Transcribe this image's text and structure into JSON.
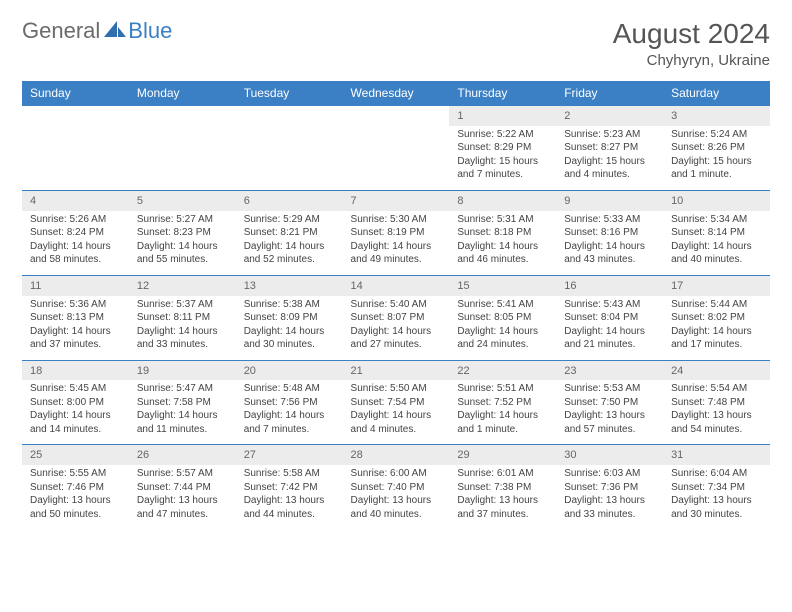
{
  "header": {
    "logo_text_1": "General",
    "logo_text_2": "Blue",
    "month_title": "August 2024",
    "location": "Chyhyryn, Ukraine"
  },
  "colors": {
    "header_bg": "#3b7fc4",
    "header_text": "#ffffff",
    "daynum_bg": "#ececec",
    "border": "#3b7fc4",
    "body_text": "#444444",
    "logo_gray": "#6b6b6b",
    "logo_blue": "#3b7fc4"
  },
  "day_names": [
    "Sunday",
    "Monday",
    "Tuesday",
    "Wednesday",
    "Thursday",
    "Friday",
    "Saturday"
  ],
  "weeks": [
    [
      null,
      null,
      null,
      null,
      {
        "n": "1",
        "sr": "Sunrise: 5:22 AM",
        "ss": "Sunset: 8:29 PM",
        "dl": "Daylight: 15 hours and 7 minutes."
      },
      {
        "n": "2",
        "sr": "Sunrise: 5:23 AM",
        "ss": "Sunset: 8:27 PM",
        "dl": "Daylight: 15 hours and 4 minutes."
      },
      {
        "n": "3",
        "sr": "Sunrise: 5:24 AM",
        "ss": "Sunset: 8:26 PM",
        "dl": "Daylight: 15 hours and 1 minute."
      }
    ],
    [
      {
        "n": "4",
        "sr": "Sunrise: 5:26 AM",
        "ss": "Sunset: 8:24 PM",
        "dl": "Daylight: 14 hours and 58 minutes."
      },
      {
        "n": "5",
        "sr": "Sunrise: 5:27 AM",
        "ss": "Sunset: 8:23 PM",
        "dl": "Daylight: 14 hours and 55 minutes."
      },
      {
        "n": "6",
        "sr": "Sunrise: 5:29 AM",
        "ss": "Sunset: 8:21 PM",
        "dl": "Daylight: 14 hours and 52 minutes."
      },
      {
        "n": "7",
        "sr": "Sunrise: 5:30 AM",
        "ss": "Sunset: 8:19 PM",
        "dl": "Daylight: 14 hours and 49 minutes."
      },
      {
        "n": "8",
        "sr": "Sunrise: 5:31 AM",
        "ss": "Sunset: 8:18 PM",
        "dl": "Daylight: 14 hours and 46 minutes."
      },
      {
        "n": "9",
        "sr": "Sunrise: 5:33 AM",
        "ss": "Sunset: 8:16 PM",
        "dl": "Daylight: 14 hours and 43 minutes."
      },
      {
        "n": "10",
        "sr": "Sunrise: 5:34 AM",
        "ss": "Sunset: 8:14 PM",
        "dl": "Daylight: 14 hours and 40 minutes."
      }
    ],
    [
      {
        "n": "11",
        "sr": "Sunrise: 5:36 AM",
        "ss": "Sunset: 8:13 PM",
        "dl": "Daylight: 14 hours and 37 minutes."
      },
      {
        "n": "12",
        "sr": "Sunrise: 5:37 AM",
        "ss": "Sunset: 8:11 PM",
        "dl": "Daylight: 14 hours and 33 minutes."
      },
      {
        "n": "13",
        "sr": "Sunrise: 5:38 AM",
        "ss": "Sunset: 8:09 PM",
        "dl": "Daylight: 14 hours and 30 minutes."
      },
      {
        "n": "14",
        "sr": "Sunrise: 5:40 AM",
        "ss": "Sunset: 8:07 PM",
        "dl": "Daylight: 14 hours and 27 minutes."
      },
      {
        "n": "15",
        "sr": "Sunrise: 5:41 AM",
        "ss": "Sunset: 8:05 PM",
        "dl": "Daylight: 14 hours and 24 minutes."
      },
      {
        "n": "16",
        "sr": "Sunrise: 5:43 AM",
        "ss": "Sunset: 8:04 PM",
        "dl": "Daylight: 14 hours and 21 minutes."
      },
      {
        "n": "17",
        "sr": "Sunrise: 5:44 AM",
        "ss": "Sunset: 8:02 PM",
        "dl": "Daylight: 14 hours and 17 minutes."
      }
    ],
    [
      {
        "n": "18",
        "sr": "Sunrise: 5:45 AM",
        "ss": "Sunset: 8:00 PM",
        "dl": "Daylight: 14 hours and 14 minutes."
      },
      {
        "n": "19",
        "sr": "Sunrise: 5:47 AM",
        "ss": "Sunset: 7:58 PM",
        "dl": "Daylight: 14 hours and 11 minutes."
      },
      {
        "n": "20",
        "sr": "Sunrise: 5:48 AM",
        "ss": "Sunset: 7:56 PM",
        "dl": "Daylight: 14 hours and 7 minutes."
      },
      {
        "n": "21",
        "sr": "Sunrise: 5:50 AM",
        "ss": "Sunset: 7:54 PM",
        "dl": "Daylight: 14 hours and 4 minutes."
      },
      {
        "n": "22",
        "sr": "Sunrise: 5:51 AM",
        "ss": "Sunset: 7:52 PM",
        "dl": "Daylight: 14 hours and 1 minute."
      },
      {
        "n": "23",
        "sr": "Sunrise: 5:53 AM",
        "ss": "Sunset: 7:50 PM",
        "dl": "Daylight: 13 hours and 57 minutes."
      },
      {
        "n": "24",
        "sr": "Sunrise: 5:54 AM",
        "ss": "Sunset: 7:48 PM",
        "dl": "Daylight: 13 hours and 54 minutes."
      }
    ],
    [
      {
        "n": "25",
        "sr": "Sunrise: 5:55 AM",
        "ss": "Sunset: 7:46 PM",
        "dl": "Daylight: 13 hours and 50 minutes."
      },
      {
        "n": "26",
        "sr": "Sunrise: 5:57 AM",
        "ss": "Sunset: 7:44 PM",
        "dl": "Daylight: 13 hours and 47 minutes."
      },
      {
        "n": "27",
        "sr": "Sunrise: 5:58 AM",
        "ss": "Sunset: 7:42 PM",
        "dl": "Daylight: 13 hours and 44 minutes."
      },
      {
        "n": "28",
        "sr": "Sunrise: 6:00 AM",
        "ss": "Sunset: 7:40 PM",
        "dl": "Daylight: 13 hours and 40 minutes."
      },
      {
        "n": "29",
        "sr": "Sunrise: 6:01 AM",
        "ss": "Sunset: 7:38 PM",
        "dl": "Daylight: 13 hours and 37 minutes."
      },
      {
        "n": "30",
        "sr": "Sunrise: 6:03 AM",
        "ss": "Sunset: 7:36 PM",
        "dl": "Daylight: 13 hours and 33 minutes."
      },
      {
        "n": "31",
        "sr": "Sunrise: 6:04 AM",
        "ss": "Sunset: 7:34 PM",
        "dl": "Daylight: 13 hours and 30 minutes."
      }
    ]
  ]
}
